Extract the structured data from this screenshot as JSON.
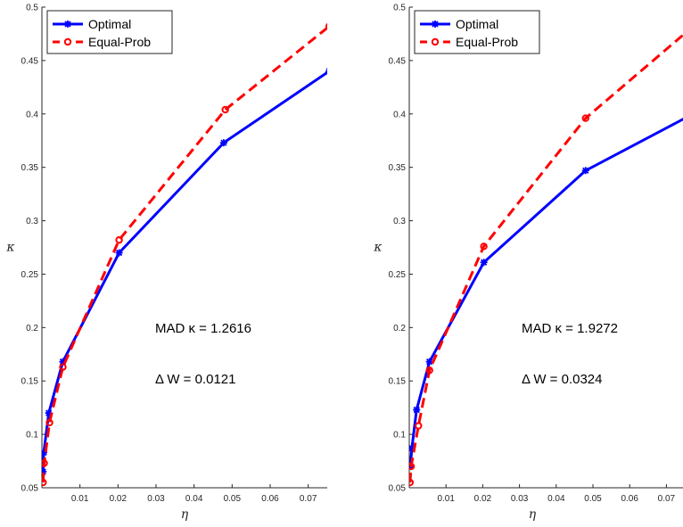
{
  "chart_data": [
    {
      "type": "line",
      "xlabel": "η",
      "ylabel": "κ",
      "xlim": [
        0,
        0.075
      ],
      "ylim": [
        0.05,
        0.5
      ],
      "xticks": [
        "0.01",
        "0.02",
        "0.03",
        "0.04",
        "0.05",
        "0.06",
        "0.07"
      ],
      "yticks": [
        "0.05",
        "0.1",
        "0.15",
        "0.2",
        "0.25",
        "0.3",
        "0.35",
        "0.4",
        "0.45",
        "0.5"
      ],
      "grid": false,
      "legend": "top-left",
      "series": [
        {
          "name": "Optimal",
          "color": "#0000ff",
          "style": "solid",
          "marker": "asterisk",
          "x": [
            0.0003,
            0.0005,
            0.0018,
            0.0055,
            0.0203,
            0.0478,
            0.0755
          ],
          "y": [
            0.065,
            0.083,
            0.12,
            0.168,
            0.27,
            0.373,
            0.44
          ]
        },
        {
          "name": "Equal-Prob",
          "color": "#ff0000",
          "style": "dashed",
          "marker": "circle",
          "x": [
            0.0003,
            0.0006,
            0.002,
            0.0055,
            0.0203,
            0.0482,
            0.0755
          ],
          "y": [
            0.055,
            0.073,
            0.111,
            0.163,
            0.282,
            0.404,
            0.482
          ]
        }
      ],
      "annotations": [
        "MAD κ = 1.2616",
        "Δ W = 0.0121"
      ]
    },
    {
      "type": "line",
      "xlabel": "η",
      "ylabel": "κ",
      "xlim": [
        0,
        0.075
      ],
      "ylim": [
        0.05,
        0.5
      ],
      "xticks": [
        "0.01",
        "0.02",
        "0.03",
        "0.04",
        "0.05",
        "0.06",
        "0.07"
      ],
      "yticks": [
        "0.05",
        "0.1",
        "0.15",
        "0.2",
        "0.25",
        "0.3",
        "0.35",
        "0.4",
        "0.45",
        "0.5"
      ],
      "grid": false,
      "legend": "top-left",
      "series": [
        {
          "name": "Optimal",
          "color": "#0000ff",
          "style": "solid",
          "marker": "asterisk",
          "x": [
            0.0003,
            0.0007,
            0.002,
            0.0055,
            0.0203,
            0.048,
            0.08
          ],
          "y": [
            0.07,
            0.087,
            0.123,
            0.168,
            0.261,
            0.347,
            0.405
          ]
        },
        {
          "name": "Equal-Prob",
          "color": "#ff0000",
          "style": "dashed",
          "marker": "circle",
          "x": [
            0.0002,
            0.0005,
            0.0025,
            0.0055,
            0.0203,
            0.048,
            0.08
          ],
          "y": [
            0.055,
            0.07,
            0.108,
            0.16,
            0.276,
            0.396,
            0.49
          ]
        }
      ],
      "annotations": [
        "MAD κ = 1.9272",
        "Δ W = 0.0324"
      ]
    }
  ]
}
